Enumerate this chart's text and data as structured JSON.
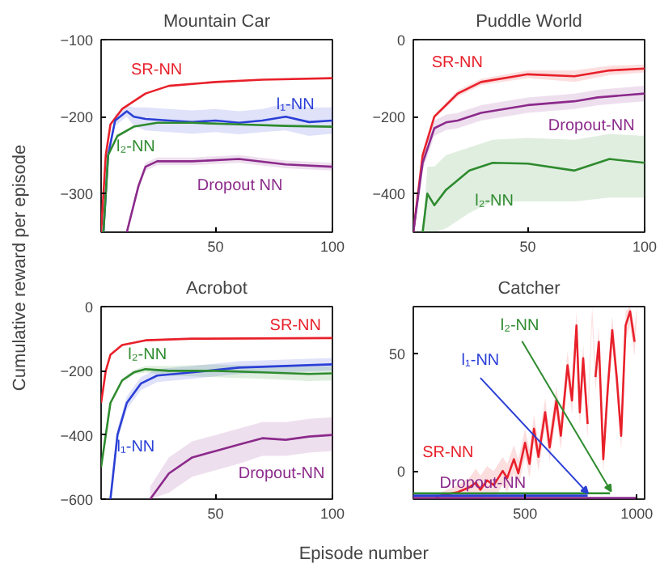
{
  "chart_data": [
    {
      "type": "line",
      "title": "Mountain Car",
      "ylabel": "Cumulative reward per episode",
      "xlim": [
        1,
        100
      ],
      "ylim": [
        -350,
        -100
      ],
      "xticks": [
        50,
        100
      ],
      "yticks": [
        -300,
        -200,
        -100
      ],
      "grid": false,
      "marker": "none",
      "series": [
        {
          "name": "SR-NN",
          "color": "#e8202a",
          "x": [
            1,
            3,
            5,
            10,
            20,
            30,
            50,
            70,
            100
          ],
          "values": [
            -350,
            -250,
            -210,
            -190,
            -170,
            -160,
            -155,
            -152,
            -150
          ]
        },
        {
          "name": "l₁-NN",
          "color": "#2a3fd6",
          "x": [
            2,
            4,
            7,
            12,
            15,
            20,
            30,
            40,
            50,
            60,
            70,
            80,
            90,
            100
          ],
          "values": [
            -350,
            -250,
            -205,
            -193,
            -200,
            -203,
            -205,
            -207,
            -205,
            -208,
            -205,
            -200,
            -207,
            -205
          ],
          "lower": [
            -350,
            -255,
            -212,
            -200,
            -212,
            -218,
            -220,
            -222,
            -220,
            -223,
            -220,
            -218,
            -225,
            -222
          ],
          "upper": [
            -350,
            -245,
            -198,
            -186,
            -188,
            -188,
            -190,
            -192,
            -190,
            -193,
            -190,
            -183,
            -188,
            -188
          ]
        },
        {
          "name": "l₂-NN",
          "color": "#2e8b2e",
          "x": [
            2,
            4,
            8,
            15,
            25,
            40,
            60,
            80,
            100
          ],
          "values": [
            -350,
            -250,
            -225,
            -213,
            -208,
            -208,
            -210,
            -212,
            -213
          ]
        },
        {
          "name": "Dropout NN",
          "color": "#8b2a8b",
          "x": [
            12,
            17,
            20,
            25,
            40,
            60,
            80,
            100
          ],
          "values": [
            -350,
            -290,
            -265,
            -258,
            -258,
            -255,
            -262,
            -265
          ],
          "lower": [
            -350,
            -295,
            -270,
            -263,
            -263,
            -260,
            -267,
            -270
          ],
          "upper": [
            -350,
            -285,
            -260,
            -253,
            -253,
            -250,
            -257,
            -260
          ]
        }
      ]
    },
    {
      "type": "line",
      "title": "Puddle World",
      "xlim": [
        1,
        100
      ],
      "ylim": [
        -500,
        0
      ],
      "xticks": [
        50,
        100
      ],
      "yticks": [
        -400,
        -200,
        0
      ],
      "grid": false,
      "marker": "none",
      "series": [
        {
          "name": "SR-NN",
          "color": "#e8202a",
          "x": [
            1,
            5,
            10,
            20,
            30,
            50,
            70,
            85,
            100
          ],
          "values": [
            -500,
            -300,
            -200,
            -140,
            -110,
            -90,
            -95,
            -80,
            -75
          ],
          "lower": [
            -500,
            -305,
            -205,
            -148,
            -118,
            -100,
            -110,
            -92,
            -85
          ],
          "upper": [
            -500,
            -295,
            -195,
            -132,
            -102,
            -80,
            -80,
            -68,
            -65
          ]
        },
        {
          "name": "Dropout-NN",
          "color": "#8b2a8b",
          "x": [
            1,
            5,
            10,
            15,
            20,
            30,
            40,
            50,
            70,
            80,
            90,
            100
          ],
          "values": [
            -500,
            -320,
            -230,
            -215,
            -210,
            -190,
            -180,
            -170,
            -160,
            -150,
            -145,
            -140
          ],
          "lower": [
            -500,
            -340,
            -250,
            -235,
            -230,
            -210,
            -200,
            -190,
            -180,
            -170,
            -165,
            -160
          ],
          "upper": [
            -500,
            -300,
            -210,
            -195,
            -190,
            -170,
            -160,
            -150,
            -140,
            -130,
            -125,
            -120
          ]
        },
        {
          "name": "l₂-NN",
          "color": "#2e8b2e",
          "x": [
            5,
            7,
            10,
            15,
            25,
            35,
            50,
            70,
            85,
            100
          ],
          "values": [
            -500,
            -400,
            -430,
            -390,
            -340,
            -320,
            -322,
            -340,
            -310,
            -320
          ],
          "lower": [
            -500,
            -500,
            -500,
            -490,
            -450,
            -420,
            -420,
            -420,
            -410,
            -410
          ],
          "upper": [
            -500,
            -330,
            -330,
            -300,
            -280,
            -260,
            -255,
            -260,
            -245,
            -250
          ]
        }
      ]
    },
    {
      "type": "line",
      "title": "Acrobot",
      "xlabel": "Episode number",
      "xlim": [
        1,
        100
      ],
      "ylim": [
        -600,
        0
      ],
      "xticks": [
        50,
        100
      ],
      "yticks": [
        -600,
        -400,
        -200,
        0
      ],
      "grid": false,
      "marker": "none",
      "series": [
        {
          "name": "SR-NN",
          "color": "#e8202a",
          "x": [
            1,
            3,
            5,
            10,
            20,
            40,
            100
          ],
          "values": [
            -300,
            -200,
            -150,
            -120,
            -105,
            -100,
            -98
          ]
        },
        {
          "name": "l₁-NN",
          "color": "#2a3fd6",
          "x": [
            5,
            8,
            12,
            18,
            25,
            40,
            60,
            80,
            100
          ],
          "values": [
            -600,
            -400,
            -300,
            -240,
            -215,
            -205,
            -190,
            -185,
            -180
          ],
          "lower": [
            -600,
            -420,
            -320,
            -260,
            -235,
            -225,
            -210,
            -205,
            -200
          ],
          "upper": [
            -600,
            -380,
            -280,
            -220,
            -195,
            -185,
            -170,
            -165,
            -160
          ]
        },
        {
          "name": "l₂-NN",
          "color": "#2e8b2e",
          "x": [
            1,
            5,
            10,
            15,
            20,
            30,
            50,
            70,
            90,
            100
          ],
          "values": [
            -500,
            -300,
            -230,
            -205,
            -195,
            -200,
            -200,
            -205,
            -210,
            -208
          ],
          "lower": [
            -500,
            -305,
            -235,
            -212,
            -205,
            -215,
            -220,
            -225,
            -232,
            -230
          ],
          "upper": [
            -500,
            -295,
            -225,
            -198,
            -185,
            -185,
            -180,
            -185,
            -188,
            -186
          ]
        },
        {
          "name": "Dropout-NN",
          "color": "#8b2a8b",
          "x": [
            22,
            30,
            40,
            50,
            60,
            70,
            80,
            90,
            100
          ],
          "values": [
            -600,
            -520,
            -470,
            -450,
            -430,
            -410,
            -415,
            -405,
            -400
          ],
          "lower": [
            -600,
            -580,
            -530,
            -510,
            -490,
            -465,
            -465,
            -455,
            -450
          ],
          "upper": [
            -560,
            -470,
            -420,
            -400,
            -380,
            -360,
            -360,
            -350,
            -345
          ]
        }
      ]
    },
    {
      "type": "line",
      "title": "Catcher",
      "xlim": [
        0,
        1035
      ],
      "ylim": [
        -12,
        70
      ],
      "xticks": [
        500,
        1000
      ],
      "yticks": [
        0,
        50
      ],
      "grid": false,
      "marker": "none",
      "series": [
        {
          "name": "SR-NN",
          "color": "#e8202a",
          "x": [
            0,
            50,
            100,
            150,
            200,
            250,
            280,
            300,
            330,
            360,
            400,
            420,
            450,
            470,
            500,
            520,
            540,
            560,
            590,
            610,
            640,
            660,
            690,
            710,
            730,
            745,
            760,
            780,
            800,
            815,
            830,
            850,
            870,
            890,
            910,
            930,
            950,
            970,
            990,
            1000
          ],
          "values": [
            null,
            null,
            -11,
            -10,
            -9,
            -7,
            -5,
            -8,
            -4,
            -6,
            0,
            -3,
            5,
            -1,
            12,
            3,
            18,
            6,
            25,
            10,
            30,
            15,
            45,
            30,
            62,
            25,
            48,
            20,
            null,
            40,
            55,
            5,
            35,
            60,
            40,
            15,
            62,
            68,
            55,
            null
          ],
          "lower": [
            -12,
            -12,
            -12,
            -12,
            -12,
            -12,
            -11,
            -12,
            -10,
            -12,
            -6,
            -9,
            -1,
            -7,
            6,
            -3,
            12,
            0,
            19,
            4,
            24,
            9,
            39,
            24,
            56,
            19,
            42,
            14,
            64,
            34,
            49,
            -1,
            29,
            54,
            34,
            9,
            56,
            62,
            49,
            64
          ],
          "upper": [
            -11,
            -10.5,
            -10,
            -8,
            -6,
            -3,
            1,
            -2,
            2,
            0,
            6,
            3,
            11,
            5,
            18,
            9,
            24,
            12,
            31,
            16,
            36,
            21,
            51,
            36,
            68,
            31,
            54,
            26,
            70,
            46,
            61,
            11,
            41,
            66,
            46,
            21,
            68,
            70,
            61,
            70
          ]
        },
        {
          "name": "l₁-NN",
          "color": "#2a3fd6",
          "x": [
            0,
            780
          ],
          "values": [
            -10.5,
            -10.5
          ]
        },
        {
          "name": "l₂-NN",
          "color": "#2e8b2e",
          "x": [
            0,
            880
          ],
          "values": [
            -9.5,
            -9.5
          ]
        },
        {
          "name": "Dropout-NN",
          "color": "#8b2a8b",
          "x": [
            0,
            1000
          ],
          "values": [
            -11.5,
            -11.5
          ]
        }
      ]
    }
  ]
}
